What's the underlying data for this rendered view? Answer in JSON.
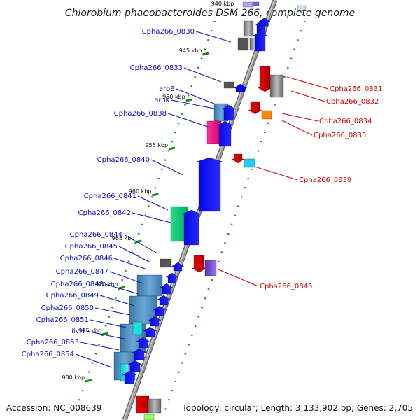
{
  "title": "Chlorobium phaeobacteroides DSM 266, complete genome",
  "top_partial_label": "940 kbp",
  "footer": {
    "accession": "Accession: NC_008639",
    "summary": "Topology: circular; Length: 3,133,902 bp; Genes: 2,705"
  },
  "colors": {
    "left_label": "#1010c0",
    "right_label": "#cc0000",
    "axis": "#888888",
    "tick": "#1a8a1a"
  },
  "scale_ticks": [
    "945 kbp",
    "950 kbp",
    "955 kbp",
    "960 kbp",
    "965 kbp",
    "970 kbp",
    "975 kbp",
    "980 kbp"
  ],
  "left_genes": [
    "Cpha266_0830",
    "Cpha266_0833",
    "aroB",
    "aroK",
    "Cpha266_0838",
    "Cpha266_0840",
    "Cpha266_0841",
    "Cpha266_0842",
    "Cpha266_0844",
    "Cpha266_0845",
    "Cpha266_0846",
    "Cpha266_0847",
    "Cpha266_0848",
    "Cpha266_0849",
    "Cpha266_0850",
    "Cpha266_0851",
    "ilvH",
    "Cpha266_0853",
    "Cpha266_0854"
  ],
  "right_genes": [
    "Cpha266_0831",
    "Cpha266_0832",
    "Cpha266_0834",
    "Cpha266_0835",
    "Cpha266_0839",
    "Cpha266_0843"
  ]
}
